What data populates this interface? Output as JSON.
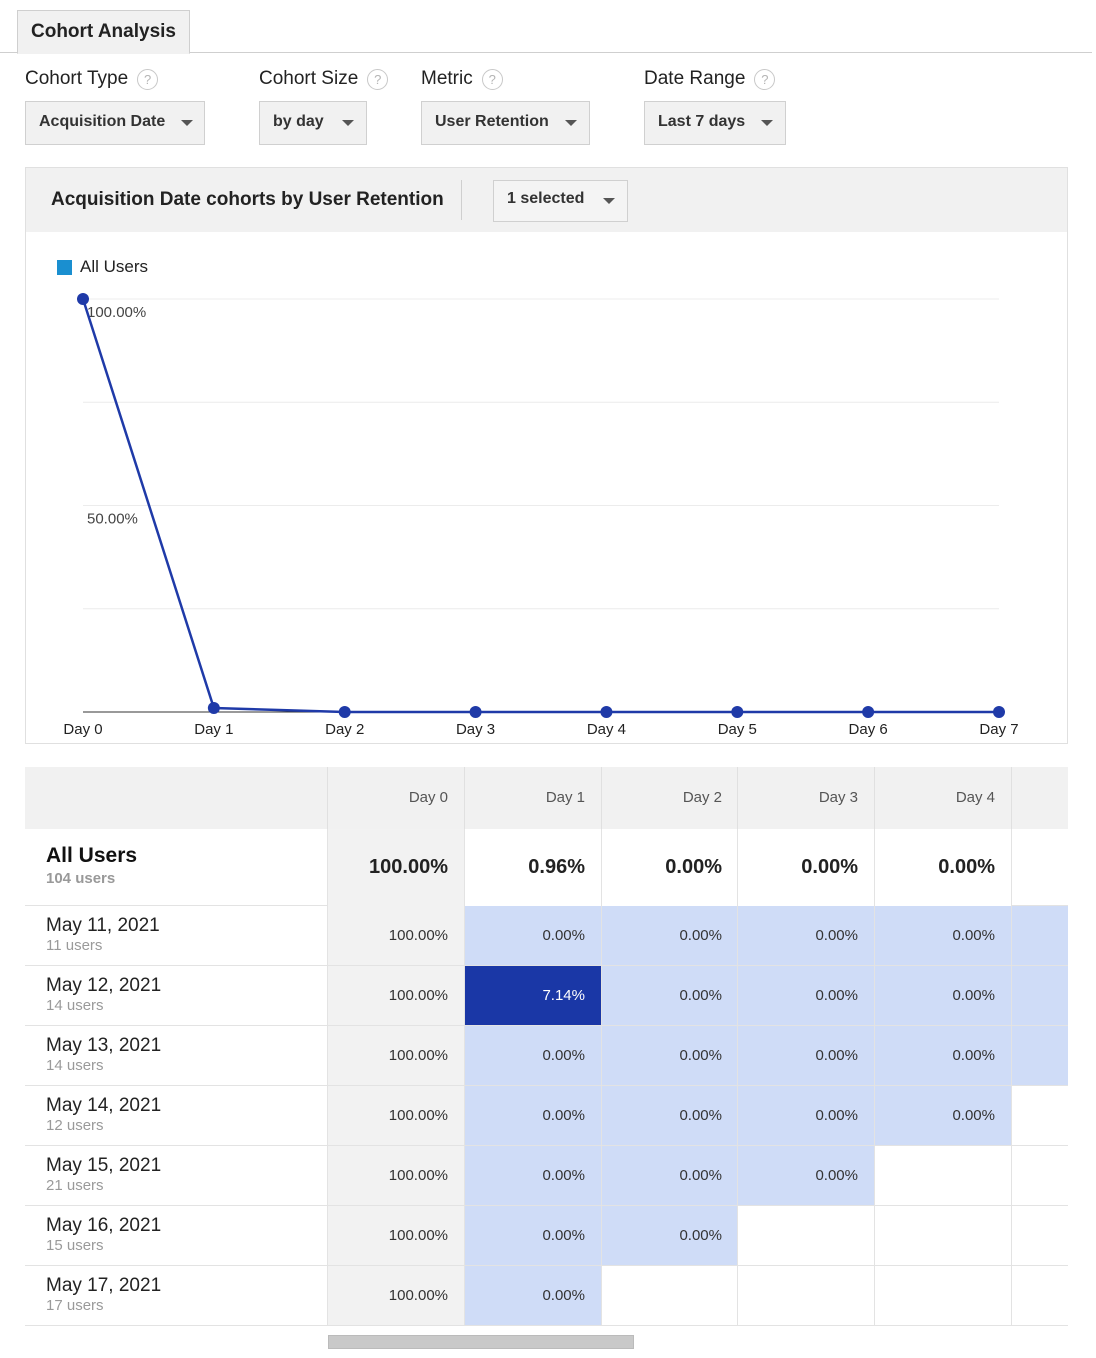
{
  "tabs": {
    "active_label": "Cohort Analysis"
  },
  "controls": {
    "cohort_type": {
      "label": "Cohort Type",
      "value": "Acquisition Date"
    },
    "cohort_size": {
      "label": "Cohort Size",
      "value": "by day"
    },
    "metric": {
      "label": "Metric",
      "value": "User Retention"
    },
    "date_range": {
      "label": "Date Range",
      "value": "Last 7 days"
    },
    "help_glyph": "?"
  },
  "chart_panel": {
    "title": "Acquisition Date cohorts by User Retention",
    "selector_value": "1 selected"
  },
  "chart_data": {
    "type": "line",
    "legend": [
      "All Users"
    ],
    "legend_placement": "top-left",
    "x": [
      "Day 0",
      "Day 1",
      "Day 2",
      "Day 3",
      "Day 4",
      "Day 5",
      "Day 6",
      "Day 7"
    ],
    "series": [
      {
        "name": "All Users",
        "values": [
          100.0,
          0.96,
          0.0,
          0.0,
          0.0,
          0.0,
          0.0,
          0.0
        ]
      }
    ],
    "ytick_labels": [
      "100.00%",
      "50.00%"
    ],
    "ylim": [
      0,
      100
    ],
    "grid": true,
    "colors": {
      "line": "#1f3aa8",
      "legend_swatch": "#1a8fd0"
    }
  },
  "table": {
    "columns": [
      "Day 0",
      "Day 1",
      "Day 2",
      "Day 3",
      "Day 4"
    ],
    "summary": {
      "label": "All Users",
      "sublabel": "104 users",
      "values": [
        "100.00%",
        "0.96%",
        "0.00%",
        "0.00%",
        "0.00%"
      ]
    },
    "rows": [
      {
        "label": "May 11, 2021",
        "sublabel": "11 users",
        "values": [
          "100.00%",
          "0.00%",
          "0.00%",
          "0.00%",
          "0.00%"
        ],
        "extra_tinted": true
      },
      {
        "label": "May 12, 2021",
        "sublabel": "14 users",
        "values": [
          "100.00%",
          "7.14%",
          "0.00%",
          "0.00%",
          "0.00%"
        ],
        "extra_tinted": true
      },
      {
        "label": "May 13, 2021",
        "sublabel": "14 users",
        "values": [
          "100.00%",
          "0.00%",
          "0.00%",
          "0.00%",
          "0.00%"
        ],
        "extra_tinted": true
      },
      {
        "label": "May 14, 2021",
        "sublabel": "12 users",
        "values": [
          "100.00%",
          "0.00%",
          "0.00%",
          "0.00%",
          "0.00%"
        ],
        "extra_tinted": false
      },
      {
        "label": "May 15, 2021",
        "sublabel": "21 users",
        "values": [
          "100.00%",
          "0.00%",
          "0.00%",
          "0.00%",
          ""
        ],
        "extra_tinted": false
      },
      {
        "label": "May 16, 2021",
        "sublabel": "15 users",
        "values": [
          "100.00%",
          "0.00%",
          "0.00%",
          "",
          ""
        ],
        "extra_tinted": false
      },
      {
        "label": "May 17, 2021",
        "sublabel": "17 users",
        "values": [
          "100.00%",
          "0.00%",
          "",
          "",
          ""
        ],
        "extra_tinted": false
      }
    ],
    "colors": {
      "tint": "#cfdcf7",
      "highlight": "#1a37a6",
      "day0_bg": "#f2f2f2"
    }
  }
}
